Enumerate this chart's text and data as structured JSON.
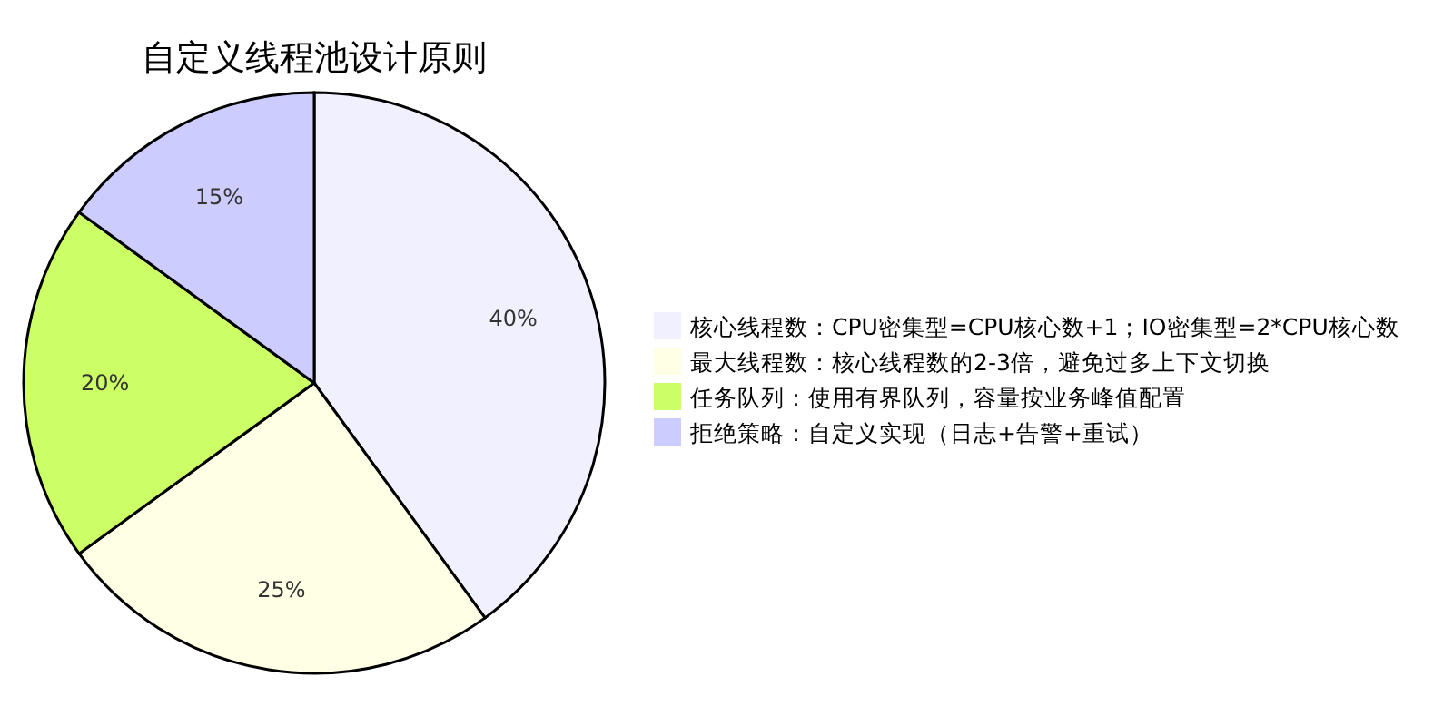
{
  "chart_data": {
    "type": "pie",
    "title": "自定义线程池设计原则",
    "categories": [
      "核心线程数：CPU密集型=CPU核心数+1；IO密集型=2*CPU核心数",
      "最大线程数：核心线程数的2-3倍，避免过多上下文切换",
      "任务队列：使用有界队列，容量按业务峰值配置",
      "拒绝策略：自定义实现（日志+告警+重试）"
    ],
    "values": [
      40,
      25,
      20,
      15
    ],
    "colors": [
      "#f0f0ff",
      "#ffffe6",
      "#ccff66",
      "#ccccff"
    ],
    "value_labels": [
      "40%",
      "25%",
      "20%",
      "15%"
    ],
    "legend": "right"
  }
}
